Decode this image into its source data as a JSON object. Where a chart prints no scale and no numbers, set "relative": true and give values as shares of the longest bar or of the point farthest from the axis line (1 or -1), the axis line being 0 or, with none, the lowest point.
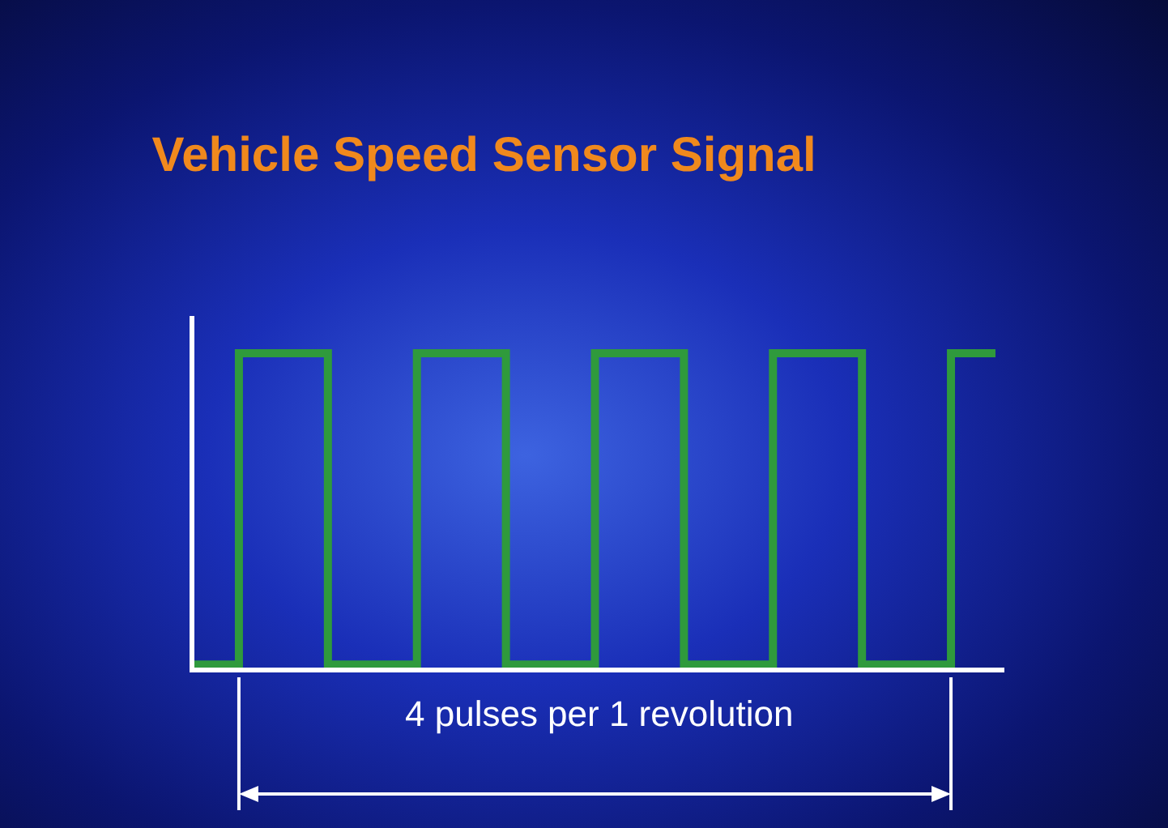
{
  "chart_data": {
    "type": "step",
    "title": "Vehicle Speed Sensor Signal",
    "relative": true,
    "categories": [
      null,
      null,
      null,
      null,
      null,
      null,
      null,
      null,
      null,
      null,
      null,
      null,
      null,
      null,
      null,
      null,
      null,
      null,
      null
    ],
    "series": [
      {
        "color": "#2f9a3c",
        "values": [
          0,
          1,
          1,
          0,
          0,
          1,
          1,
          0,
          0,
          1,
          1,
          0,
          0,
          1,
          1,
          0,
          0,
          1,
          1
        ]
      }
    ],
    "annotations": [
      "4 pulses per 1 revolution"
    ],
    "grid": false,
    "marker": "none",
    "line_style": "solid"
  }
}
